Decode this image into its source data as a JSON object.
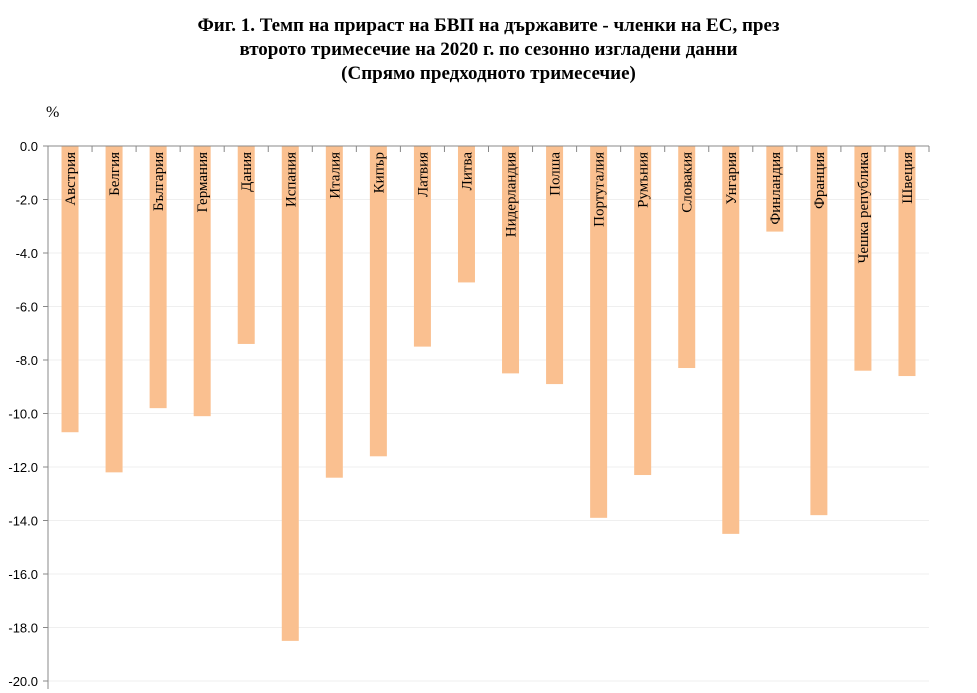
{
  "chart_data": {
    "type": "bar",
    "title_lines": [
      "Фиг. 1. Темп на прираст на БВП на държавите - членки на ЕС, през",
      "второто тримесечие на 2020 г. по сезонно изгладени данни",
      "(Спрямо предходното тримесечие)"
    ],
    "ylabel": "%",
    "xlabel": "",
    "ylim": [
      -20,
      0
    ],
    "yticks": [
      "0.0",
      "-2.0",
      "-4.0",
      "-6.0",
      "-8.0",
      "-10.0",
      "-12.0",
      "-14.0",
      "-16.0",
      "-18.0",
      "-20.0"
    ],
    "grid": true,
    "bar_color": "#FAC090",
    "categories": [
      "Австрия",
      "Белгия",
      "България",
      "Германия",
      "Дания",
      "Испания",
      "Италия",
      "Кипър",
      "Латвия",
      "Литва",
      "Нидерландия",
      "Полша",
      "Португалия",
      "Румъния",
      "Словакия",
      "Унгария",
      "Финландия",
      "Франция",
      "Чешка република",
      "Швеция"
    ],
    "values": [
      -10.7,
      -12.2,
      -9.8,
      -10.1,
      -7.4,
      -18.5,
      -12.4,
      -11.6,
      -7.5,
      -5.1,
      -8.5,
      -8.9,
      -13.9,
      -12.3,
      -8.3,
      -14.5,
      -3.2,
      -13.8,
      -8.4,
      -8.6
    ]
  }
}
